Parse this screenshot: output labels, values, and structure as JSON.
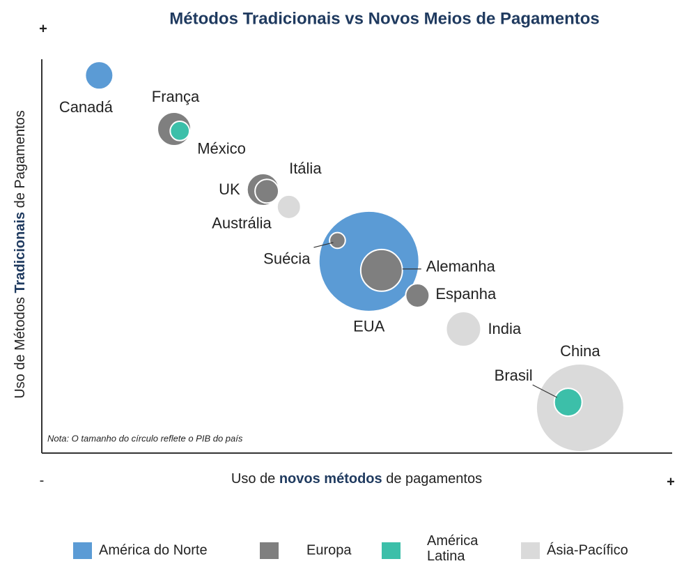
{
  "chart_data": {
    "type": "bubble",
    "title": "Métodos Tradicionais vs Novos Meios de Pagamentos",
    "x_label": [
      "Uso de ",
      "novos métodos",
      " de pagamentos"
    ],
    "y_label": [
      "Uso de Métodos ",
      "Tradicionais",
      " de Pagamentos"
    ],
    "y_axis_high": "+",
    "x_axis_low": "-",
    "x_axis_high": "+",
    "note": "Nota: O tamanho do círculo reflete o PIB do país",
    "xlim": [
      0,
      100
    ],
    "ylim": [
      0,
      100
    ],
    "series": [
      {
        "name": "América do Norte",
        "color": "#5b9bd5",
        "names": [
          "Canadá",
          "EUA"
        ],
        "x": [
          9.1,
          51.9
        ],
        "y": [
          95.9,
          48.7
        ],
        "sizes": [
          25,
          324
        ]
      },
      {
        "name": "Europa",
        "color": "#7f7f7f",
        "names": [
          "França",
          "UK",
          "Itália",
          "Suécia",
          "Alemanha",
          "Espanha"
        ],
        "x": [
          21.0,
          35.1,
          35.7,
          46.9,
          53.9,
          59.6
        ],
        "y": [
          82.3,
          66.9,
          66.5,
          54.0,
          46.4,
          40.0
        ],
        "sizes": [
          36,
          33,
          18,
          8,
          56,
          18
        ]
      },
      {
        "name": "América Latina",
        "color": "#3cbfa9",
        "names": [
          "México",
          "Brasil"
        ],
        "x": [
          21.9,
          83.5
        ],
        "y": [
          81.8,
          12.9
        ],
        "sizes": [
          12,
          25
        ]
      },
      {
        "name": "Ásia-Pacífico",
        "color": "#dadada",
        "names": [
          "Austrália",
          "India",
          "China"
        ],
        "x": [
          39.2,
          66.9,
          85.4
        ],
        "y": [
          62.5,
          31.5,
          11.5
        ],
        "sizes": [
          18,
          39,
          248
        ]
      }
    ]
  }
}
